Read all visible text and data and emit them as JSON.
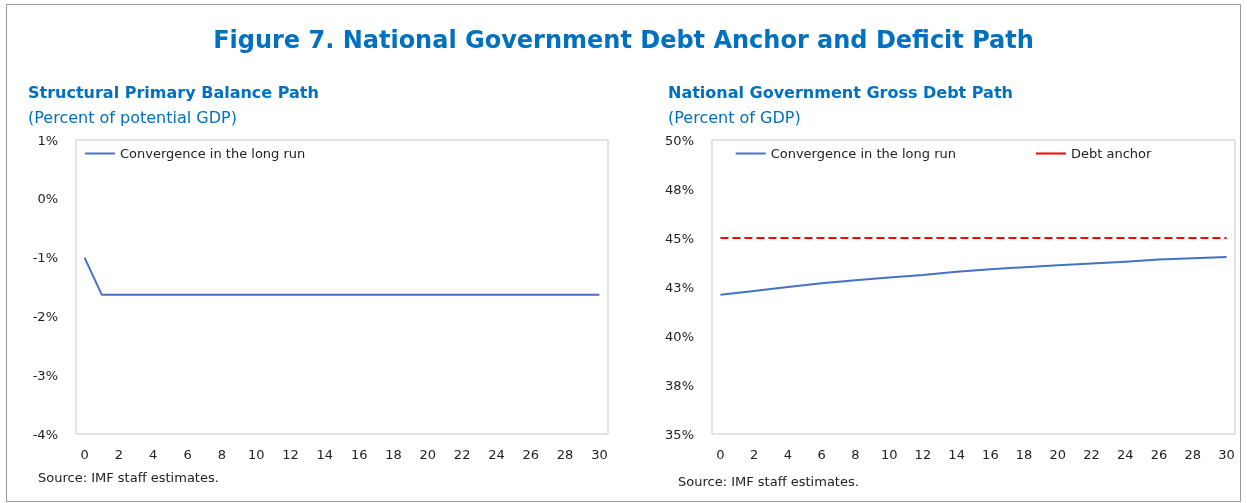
{
  "chart_data": [
    {
      "type": "line",
      "title": "Figure 7. National Government Debt Anchor and Deficit Path",
      "subtitle": "Structural Primary Balance Path",
      "ylabel": "(Percent of potential GDP)",
      "annotations": [
        "Source: IMF staff estimates."
      ],
      "series": [
        {
          "name": "Convergence in the long run",
          "color": "#4472c4",
          "x": [
            0,
            1,
            30
          ],
          "values": [
            -1.0,
            -1.63,
            -1.63
          ]
        }
      ],
      "xlim": [
        -0.5,
        30.5
      ],
      "xticks": [
        0,
        2,
        4,
        6,
        8,
        10,
        12,
        14,
        16,
        18,
        20,
        22,
        24,
        26,
        28,
        30
      ],
      "ylim": [
        -4,
        1
      ],
      "yticks": [
        {
          "value": 1,
          "label": "1%"
        },
        {
          "value": 0,
          "label": "0%"
        },
        {
          "value": -1,
          "label": "-1%"
        },
        {
          "value": -2,
          "label": "-2%"
        },
        {
          "value": -3,
          "label": "-3%"
        },
        {
          "value": -4,
          "label": "-4%"
        }
      ],
      "grid": false,
      "legend": "top left",
      "marker": "none"
    },
    {
      "type": "line",
      "subtitle": "National Government Gross Debt Path",
      "ylabel": "(Percent of GDP)",
      "annotations": [
        "Source: IMF staff estimates."
      ],
      "series": [
        {
          "name": "Convergence in the long run",
          "color": "#4472c4",
          "x": [
            0,
            2,
            4,
            6,
            8,
            10,
            12,
            14,
            16,
            18,
            20,
            22,
            24,
            26,
            28,
            30
          ],
          "values": [
            42.1,
            42.3,
            42.5,
            42.69,
            42.85,
            42.98,
            43.11,
            43.28,
            43.4,
            43.51,
            43.61,
            43.7,
            43.79,
            43.9,
            43.97,
            44.03
          ]
        },
        {
          "name": "Debt anchor",
          "color": "#ff0000",
          "x": [
            0,
            30
          ],
          "values": [
            45,
            45
          ],
          "line_style": "dashed"
        }
      ],
      "xlim": [
        -0.5,
        30.5
      ],
      "xticks": [
        0,
        2,
        4,
        6,
        8,
        10,
        12,
        14,
        16,
        18,
        20,
        22,
        24,
        26,
        28,
        30
      ],
      "ylim": [
        35,
        50
      ],
      "yticks": [
        {
          "value": 50,
          "label": "50%"
        },
        {
          "value": 47.5,
          "label": "48%"
        },
        {
          "value": 45,
          "label": "45%"
        },
        {
          "value": 42.5,
          "label": "43%"
        },
        {
          "value": 40,
          "label": "40%"
        },
        {
          "value": 37.5,
          "label": "38%"
        },
        {
          "value": 35,
          "label": "35%"
        }
      ],
      "grid": false,
      "legend": "top",
      "marker": "none"
    }
  ]
}
